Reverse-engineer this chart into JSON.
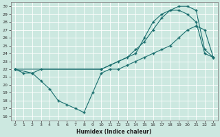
{
  "xlabel": "Humidex (Indice chaleur)",
  "bg_color": "#cce8e0",
  "grid_color": "#b0d8d0",
  "line_color": "#1a6e6e",
  "xlim": [
    -0.5,
    23.5
  ],
  "ylim": [
    15.5,
    30.5
  ],
  "xticks": [
    0,
    1,
    2,
    3,
    4,
    5,
    6,
    7,
    8,
    9,
    10,
    11,
    12,
    13,
    14,
    15,
    16,
    17,
    18,
    19,
    20,
    21,
    22,
    23
  ],
  "yticks": [
    16,
    17,
    18,
    19,
    20,
    21,
    22,
    23,
    24,
    25,
    26,
    27,
    28,
    29,
    30
  ],
  "line1_x": [
    0,
    1,
    2,
    3,
    4,
    5,
    6,
    7,
    8,
    9,
    10,
    11,
    12,
    13,
    14,
    15,
    16,
    17,
    18,
    19,
    20,
    21,
    22,
    23
  ],
  "line1_y": [
    22,
    21.5,
    21.5,
    20.5,
    19.5,
    18,
    17.5,
    17,
    16.5,
    19,
    21.5,
    22,
    22,
    22.5,
    23,
    23.5,
    24,
    24.5,
    25,
    26,
    27,
    27.5,
    27,
    23.5
  ],
  "line2_x": [
    0,
    2,
    3,
    10,
    14,
    15,
    16,
    17,
    19,
    20,
    21,
    22,
    23
  ],
  "line2_y": [
    22,
    21.5,
    22,
    22,
    24,
    26,
    28,
    29,
    30,
    30,
    29.5,
    24.5,
    23.5
  ],
  "line3_x": [
    0,
    10,
    11,
    12,
    13,
    14,
    15,
    16,
    17,
    18,
    19,
    20,
    21,
    22,
    23
  ],
  "line3_y": [
    22,
    22,
    22.5,
    23,
    23.5,
    24.5,
    25.5,
    27,
    28.5,
    29.5,
    29.5,
    29,
    28,
    24,
    23.5
  ]
}
